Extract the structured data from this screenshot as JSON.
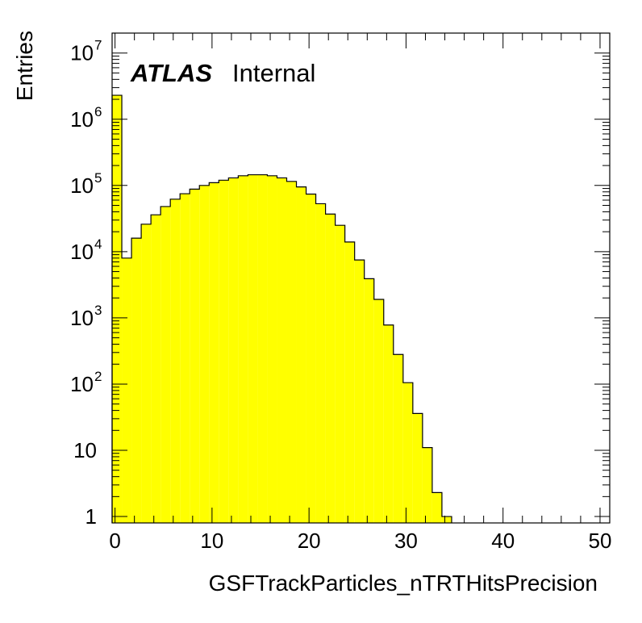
{
  "chart_data": {
    "type": "histogram",
    "title": "",
    "xlabel": "GSFTrackParticles_nTRTHitsPrecision",
    "ylabel": "Entries",
    "xlim": [
      -0.3,
      51
    ],
    "ylim": [
      0.8,
      20000000
    ],
    "yscale": "log",
    "grid": false,
    "legend": "none",
    "fill_color": "#ffff00",
    "line_color": "#000000",
    "x_ticks": [
      {
        "value": 0,
        "label": "0"
      },
      {
        "value": 10,
        "label": "10"
      },
      {
        "value": 20,
        "label": "20"
      },
      {
        "value": 30,
        "label": "30"
      },
      {
        "value": 40,
        "label": "40"
      },
      {
        "value": 50,
        "label": "50"
      }
    ],
    "y_ticks": [
      {
        "value": 1,
        "base": "1",
        "exp": ""
      },
      {
        "value": 10,
        "base": "10",
        "exp": ""
      },
      {
        "value": 100,
        "base": "10",
        "exp": "2"
      },
      {
        "value": 1000,
        "base": "10",
        "exp": "3"
      },
      {
        "value": 10000,
        "base": "10",
        "exp": "4"
      },
      {
        "value": 100000,
        "base": "10",
        "exp": "5"
      },
      {
        "value": 1000000,
        "base": "10",
        "exp": "6"
      },
      {
        "value": 10000000,
        "base": "10",
        "exp": "7"
      }
    ],
    "bin_edges": [
      -0.3,
      0.7,
      1.7,
      2.7,
      3.7,
      4.7,
      5.7,
      6.7,
      7.7,
      8.7,
      9.7,
      10.7,
      11.7,
      12.7,
      13.7,
      14.7,
      15.7,
      16.7,
      17.7,
      18.7,
      19.7,
      20.7,
      21.7,
      22.7,
      23.7,
      24.7,
      25.7,
      26.7,
      27.7,
      28.7,
      29.7,
      30.7,
      31.7,
      32.7,
      33.7,
      34.7
    ],
    "bin_values": [
      2300000,
      8000,
      16000,
      26000,
      36000,
      48000,
      62000,
      75000,
      88000,
      100000,
      110000,
      120000,
      130000,
      140000,
      145000,
      145000,
      140000,
      130000,
      115000,
      95000,
      74000,
      53000,
      37000,
      25000,
      14000,
      7500,
      3900,
      1900,
      780,
      280,
      105,
      36,
      11,
      2.3,
      1
    ]
  },
  "annotation": {
    "experiment": "ATLAS",
    "status": "Internal"
  }
}
